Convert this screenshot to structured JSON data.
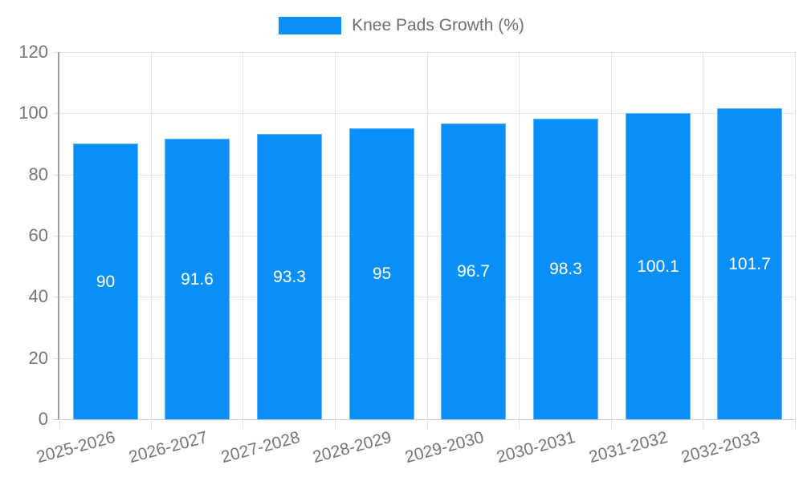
{
  "colors": {
    "bar": "#0990f8",
    "bar_border": "#64b5f6",
    "grid": "#e3e3e3",
    "y_axis_line": "#9e9e9e",
    "x_axis_line": "#c7c7c7",
    "tick_label": "#757575",
    "legend_text": "#6e6e6e",
    "value_label": "#ffffff",
    "background": "#ffffff"
  },
  "chart_data": {
    "type": "bar",
    "title": "Knee Pads Growth (%)",
    "categories": [
      "2025-2026",
      "2026-2027",
      "2027-2028",
      "2028-2029",
      "2029-2030",
      "2030-2031",
      "2031-2032",
      "2032-2033"
    ],
    "values": [
      90,
      91.6,
      93.3,
      95,
      96.7,
      98.3,
      100.1,
      101.7
    ],
    "value_labels": [
      "90",
      "91.6",
      "93.3",
      "95",
      "96.7",
      "98.3",
      "100.1",
      "101.7"
    ],
    "xlabel": "",
    "ylabel": "",
    "ylim": [
      0,
      120
    ],
    "yticks": [
      0,
      20,
      40,
      60,
      80,
      100,
      120
    ],
    "grid": true,
    "legend_position": "top",
    "legend_entries": [
      "Knee Pads Growth (%)"
    ]
  }
}
